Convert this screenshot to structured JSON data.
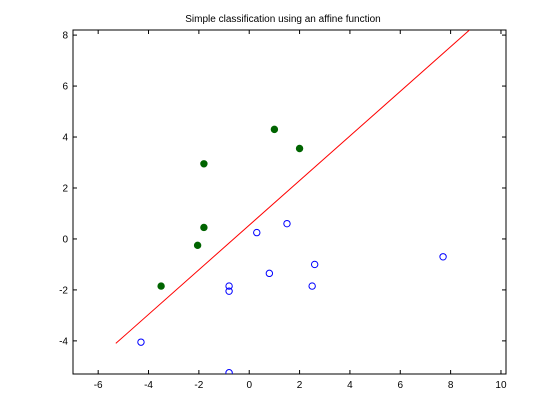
{
  "colors": {
    "background": "#ffffff",
    "axes": "#000000",
    "decision_line": "#ff0000",
    "positive_class": "#006400",
    "negative_class": "#0000ff"
  },
  "chart_data": {
    "type": "scatter",
    "title": "Simple classification using an affine function",
    "xlabel": "",
    "ylabel": "",
    "xlim": [
      -7,
      10.2
    ],
    "ylim": [
      -5.3,
      8.2
    ],
    "xticks": [
      -6,
      -4,
      -2,
      0,
      2,
      4,
      6,
      8,
      10
    ],
    "yticks": [
      -4,
      -2,
      0,
      2,
      4,
      6,
      8
    ],
    "grid": false,
    "legend": "none",
    "series": [
      {
        "marker": "filled-circle",
        "color": "#006400",
        "points": [
          [
            1.0,
            4.3
          ],
          [
            2.0,
            3.55
          ],
          [
            -1.8,
            2.95
          ],
          [
            -1.8,
            0.45
          ],
          [
            -2.05,
            -0.25
          ],
          [
            -3.5,
            -1.85
          ]
        ]
      },
      {
        "marker": "open-circle",
        "color": "#0000ff",
        "points": [
          [
            1.5,
            0.6
          ],
          [
            0.3,
            0.25
          ],
          [
            2.6,
            -1.0
          ],
          [
            0.8,
            -1.35
          ],
          [
            -0.8,
            -1.85
          ],
          [
            -0.8,
            -2.05
          ],
          [
            2.5,
            -1.85
          ],
          [
            7.7,
            -0.7
          ],
          [
            -4.3,
            -4.05
          ],
          [
            -0.8,
            -5.25
          ]
        ]
      },
      {
        "type": "line",
        "color": "#ff0000",
        "points": [
          [
            -5.3,
            -4.1
          ],
          [
            8.75,
            8.2
          ]
        ]
      }
    ]
  }
}
